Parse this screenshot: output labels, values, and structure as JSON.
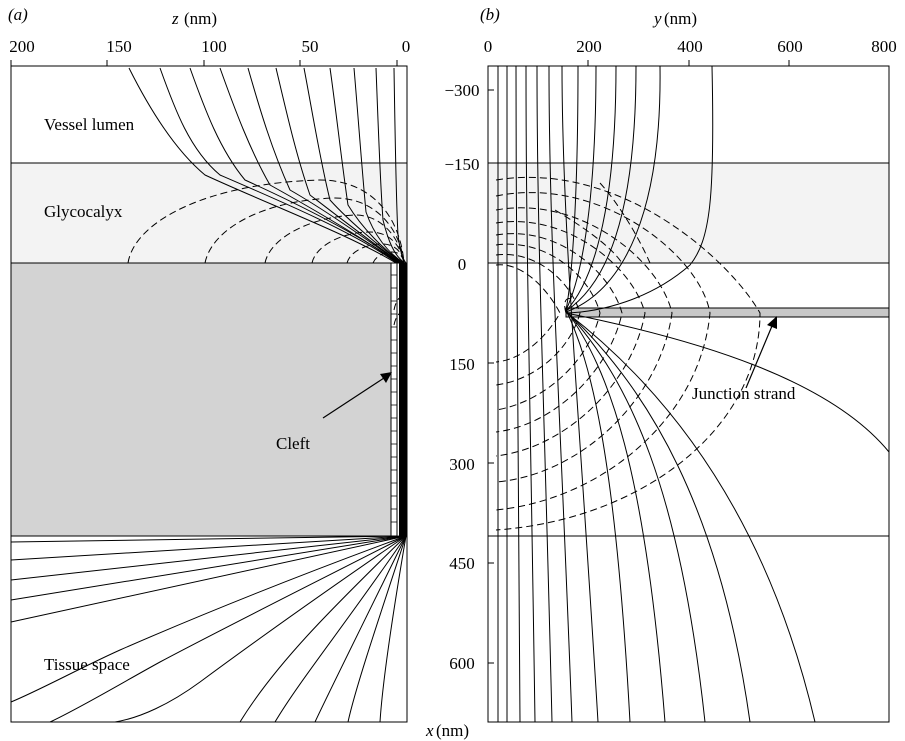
{
  "panels": {
    "a": {
      "label": "(a)",
      "axis_title_var": "z",
      "axis_title_unit": " (nm)",
      "ticks": [
        "200",
        "150",
        "100",
        "50",
        "0"
      ],
      "labels": {
        "vessel_lumen": "Vessel lumen",
        "glycocalyx": "Glycocalyx",
        "cleft": "Cleft",
        "tissue_space": "Tissue space"
      }
    },
    "b": {
      "label": "(b)",
      "axis_title_var": "y",
      "axis_title_unit": " (nm)",
      "ticks": [
        "0",
        "200",
        "400",
        "600",
        "800"
      ],
      "labels": {
        "junction_strand": "Junction strand"
      }
    }
  },
  "shared_axis": {
    "title_var": "x",
    "title_unit": " (nm)",
    "ticks": [
      "−300",
      "−150",
      "0",
      "150",
      "300",
      "450",
      "600"
    ]
  },
  "colors": {
    "glycocalyx_fill": "#f3f3f3",
    "cell_fill": "#d3d3d3",
    "cleft_fill": "#000000",
    "strand_fill": "#c8c8c8",
    "line": "#000000"
  }
}
